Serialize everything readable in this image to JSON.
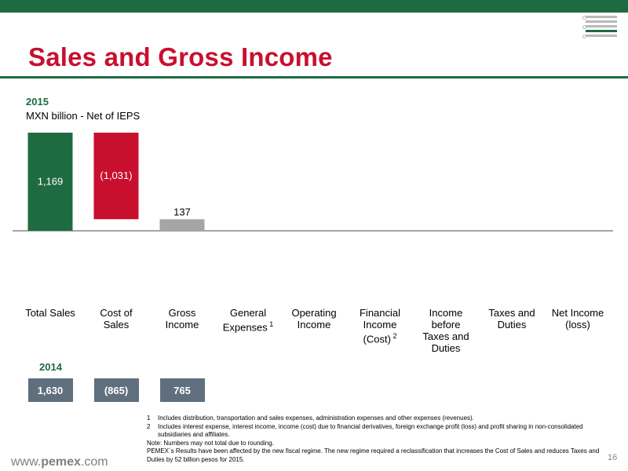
{
  "header": {
    "title": "Sales and Gross Income",
    "page_number": "16",
    "website_prefix": "www.",
    "website_brand": "pemex",
    "website_suffix": ".com",
    "brand_green": "#1e6b41",
    "title_red": "#c8102e"
  },
  "chart_data": {
    "type": "bar",
    "subtype": "waterfall",
    "title": "2015",
    "ylabel": "MXN billion - Net of IEPS",
    "categories": [
      "Total Sales",
      "Cost of Sales",
      "Gross Income",
      "General Expenses",
      "Operating Income",
      "Financial Income (Cost)",
      "Income before Taxes and Duties",
      "Taxes and Duties",
      "Net Income (loss)"
    ],
    "category_labels": [
      "Total Sales",
      "Cost of\nSales",
      "Gross\nIncome",
      "General\nExpenses",
      "Operating\nIncome",
      "Financial\nIncome\n(Cost)",
      "Income\nbefore\nTaxes and\nDuties",
      "Taxes and\nDuties",
      "Net Income\n(loss)"
    ],
    "category_footnote_refs": [
      "",
      "",
      "",
      "1",
      "",
      "2",
      "",
      "",
      ""
    ],
    "series": [
      {
        "values": [
          1169,
          -1031,
          137,
          null,
          null,
          null,
          null,
          null,
          null
        ],
        "data_labels": [
          "1,169",
          "(1,031)",
          "137",
          "",
          "",
          "",
          "",
          "",
          ""
        ],
        "colors": [
          "#1e6b41",
          "#c8102e",
          "#a5a5a5",
          "",
          "",
          "",
          "",
          "",
          ""
        ]
      }
    ],
    "ylim": [
      0,
      1169
    ],
    "grid": false,
    "legend": "none"
  },
  "comparison": {
    "year": "2014",
    "values": [
      "1,630",
      "(865)",
      "765"
    ],
    "box_color": "#5f6f7d"
  },
  "footnotes": {
    "notes": [
      {
        "num": "1",
        "text": "Includes distribution, transportation and sales expenses, administration expenses and other expenses (revenues)."
      },
      {
        "num": "2",
        "text": "Includes interest expense, interest income, income (cost) due to financial derivatives, foreign exchange profit (loss) and profit sharing in non-consolidated subsidiaries and affiliates."
      }
    ],
    "rounding": "Note: Numbers may not total due to rounding.",
    "regime": "PEMEX´s Results have been affected by the new fiscal regime. The new regime required a reclassification that increases the Cost of Sales and reduces Taxes and Duties by 52 billion pesos for 2015."
  }
}
